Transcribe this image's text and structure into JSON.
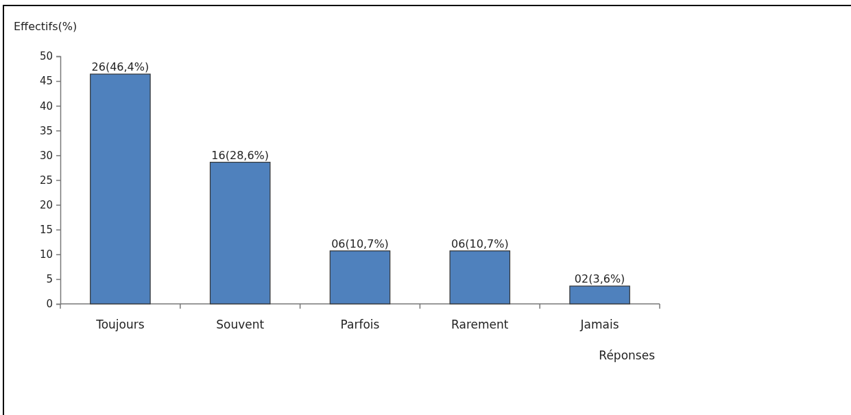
{
  "chart_data": {
    "type": "bar",
    "ylabel": "Effectifs(%)",
    "xlabel": "Réponses",
    "categories": [
      "Toujours",
      "Souvent",
      "Parfois",
      "Rarement",
      "Jamais"
    ],
    "values": [
      46.4,
      28.6,
      10.7,
      10.7,
      3.6
    ],
    "value_labels": [
      "26(46,4%)",
      "16(28,6%)",
      "06(10,7%)",
      "06(10,7%)",
      "02(3,6%)"
    ],
    "color": "#4f81bd",
    "ylim": [
      0,
      50
    ],
    "yticks": [
      0,
      5,
      10,
      15,
      20,
      25,
      30,
      35,
      40,
      45,
      50
    ]
  }
}
